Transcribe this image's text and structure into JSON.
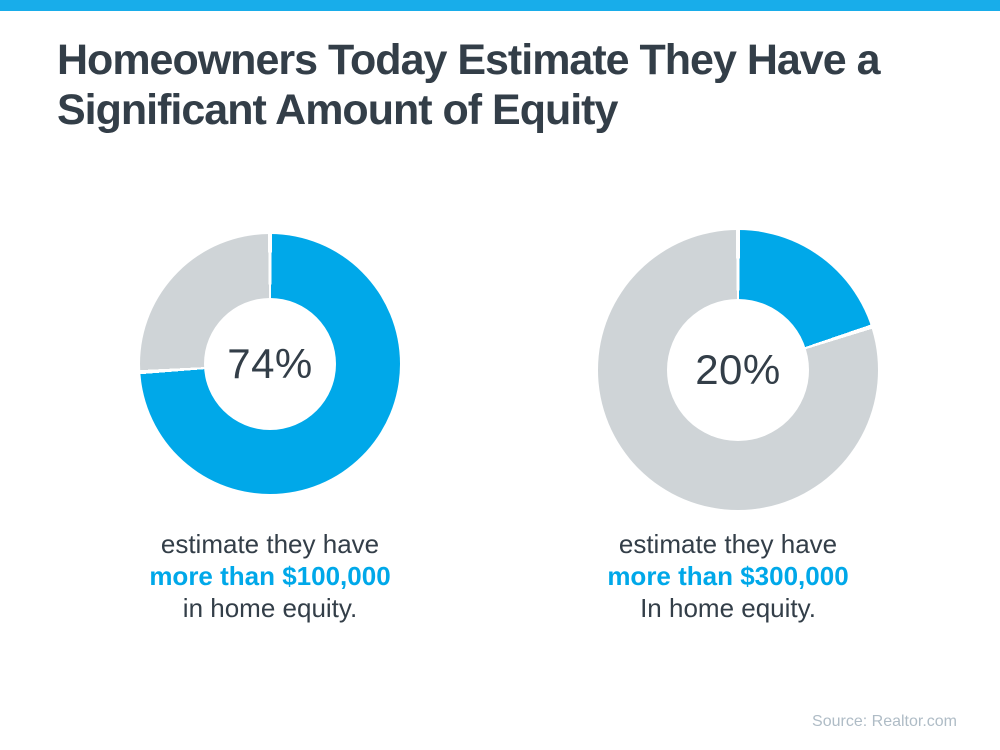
{
  "page": {
    "background_color": "#ffffff",
    "top_bar_color": "#18ADEA",
    "title": "Homeowners Today Estimate They Have a Significant Amount of Equity",
    "title_color": "#333E48",
    "source": "Source: Realtor.com",
    "source_color": "#AFBCC6"
  },
  "chart_data": [
    {
      "type": "pie",
      "variant": "donut",
      "start_angle_deg": 0,
      "direction": "clockwise",
      "values": [
        74,
        26
      ],
      "labels": [
        "homeowners estimating more than $100,000 in home equity",
        "remainder"
      ],
      "colors": [
        "#00A8E9",
        "#CFD4D7"
      ],
      "center_label": "74%",
      "caption_line1": "estimate they have",
      "caption_highlight": "more than $100,000",
      "caption_line3": "in home equity.",
      "highlight_color": "#00A8E9"
    },
    {
      "type": "pie",
      "variant": "donut",
      "start_angle_deg": 0,
      "direction": "clockwise",
      "values": [
        20,
        80
      ],
      "labels": [
        "homeowners estimating more than $300,000 in home equity",
        "remainder"
      ],
      "colors": [
        "#00A8E9",
        "#CFD4D7"
      ],
      "center_label": "20%",
      "caption_line1": "estimate they have",
      "caption_highlight": "more than $300,000",
      "caption_line3": "In home equity.",
      "highlight_color": "#00A8E9"
    }
  ]
}
